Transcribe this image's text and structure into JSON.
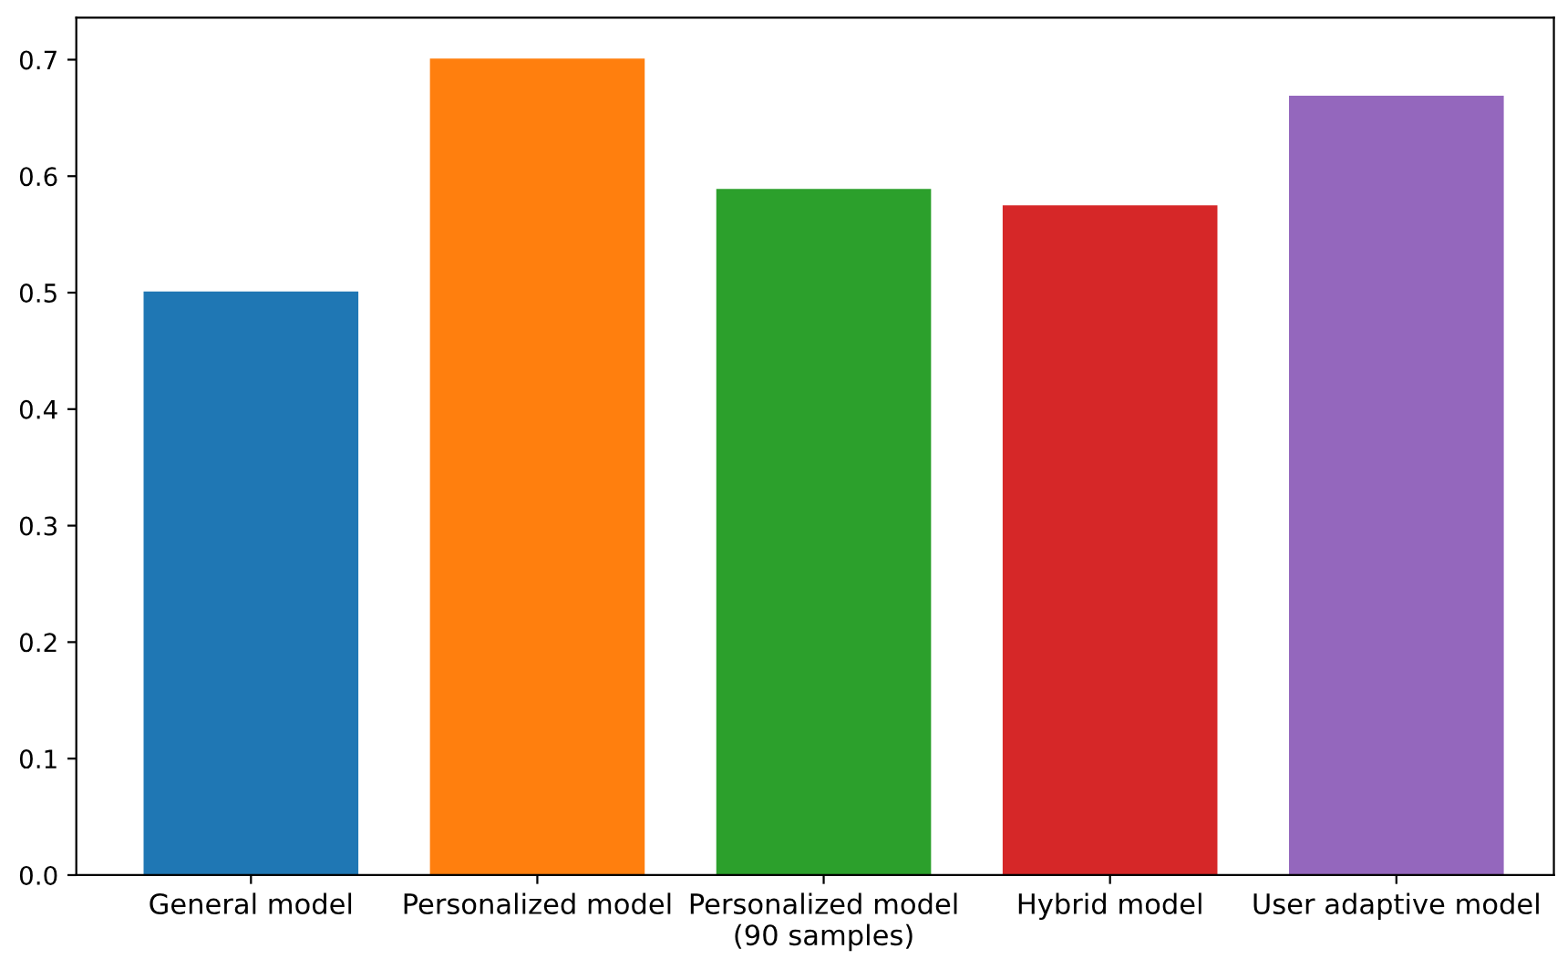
{
  "chart_data": {
    "type": "bar",
    "categories": [
      "General model",
      "Personalized model",
      "Personalized model\n(90 samples)",
      "Hybrid model",
      "User adaptive model"
    ],
    "values": [
      0.501,
      0.701,
      0.589,
      0.575,
      0.669
    ],
    "colors": [
      "#1f77b4",
      "#ff7f0e",
      "#2ca02c",
      "#d62728",
      "#9467bd"
    ],
    "ylim": [
      0,
      0.736
    ],
    "yticks": [
      {
        "value": 0,
        "label": "0.0"
      },
      0.1,
      0.2,
      0.3,
      0.4,
      0.5,
      0.6,
      0.7
    ],
    "grid": false,
    "legend": false
  }
}
